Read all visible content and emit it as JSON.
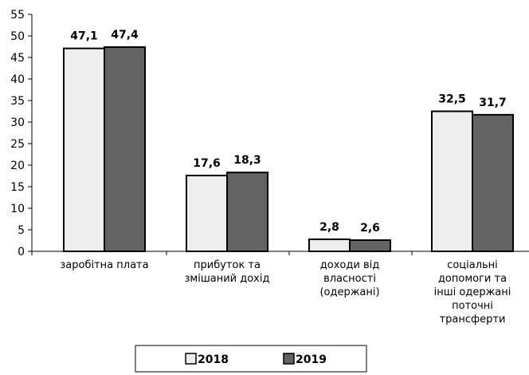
{
  "chart_data": {
    "type": "bar",
    "categories": [
      [
        "заробітна плата"
      ],
      [
        "прибуток та",
        "змішаний дохід"
      ],
      [
        "доходи від",
        "власності",
        "(одержані)"
      ],
      [
        "соціальні",
        "допомоги та",
        "інші одержані",
        "поточні",
        "трансферти"
      ]
    ],
    "series": [
      {
        "name": "2018",
        "values": [
          47.1,
          17.6,
          2.8,
          32.5
        ],
        "labels": [
          "47,1",
          "17,6",
          "2,8",
          "32,5"
        ],
        "color": "#ededed"
      },
      {
        "name": "2019",
        "values": [
          47.4,
          18.3,
          2.6,
          31.7
        ],
        "labels": [
          "47,4",
          "18,3",
          "2,6",
          "31,7"
        ],
        "color": "#636363"
      }
    ],
    "ylim": [
      0,
      55
    ],
    "yticks": [
      0,
      5,
      10,
      15,
      20,
      25,
      30,
      35,
      40,
      45,
      50,
      55
    ],
    "grid": false,
    "legend_position": "bottom",
    "title": "",
    "xlabel": "",
    "ylabel": ""
  }
}
